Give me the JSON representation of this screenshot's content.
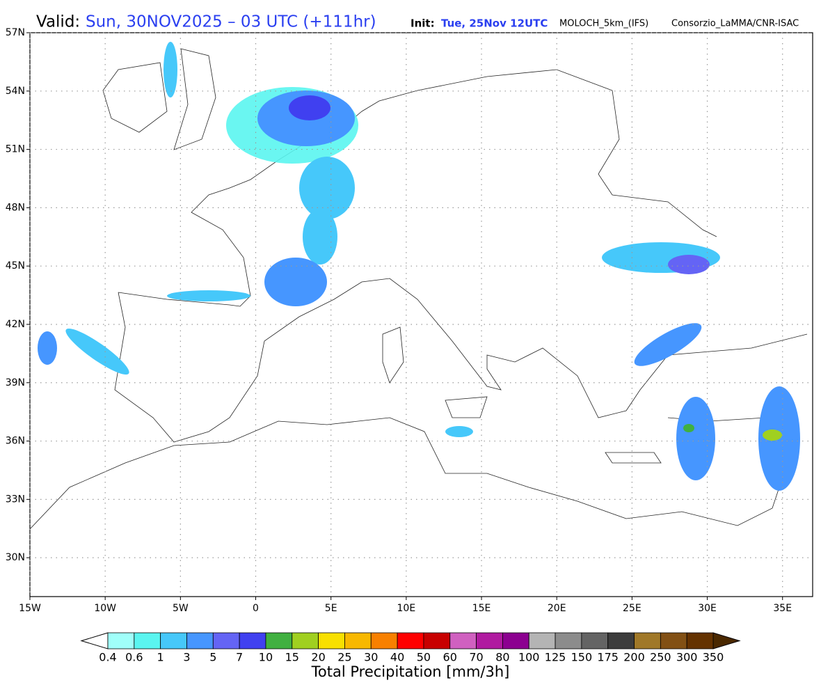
{
  "header": {
    "valid_label": "Valid:",
    "valid_time": "Sun, 30NOV2025 – 03 UTC (+111hr)",
    "init_label": "Init:",
    "init_time": "Tue, 25Nov 12UTC",
    "model": "MOLOCH_5km_(IFS)",
    "credit": "Consorzio_LaMMA/CNR-ISAC"
  },
  "map": {
    "lonlim": [
      -15,
      37
    ],
    "latlim": [
      28,
      57
    ],
    "grid": true,
    "lon_ticks": [
      {
        "value": -15,
        "label": "15W"
      },
      {
        "value": -10,
        "label": "10W"
      },
      {
        "value": -5,
        "label": "5W"
      },
      {
        "value": 0,
        "label": "0"
      },
      {
        "value": 5,
        "label": "5E"
      },
      {
        "value": 10,
        "label": "10E"
      },
      {
        "value": 15,
        "label": "15E"
      },
      {
        "value": 20,
        "label": "20E"
      },
      {
        "value": 25,
        "label": "25E"
      },
      {
        "value": 30,
        "label": "30E"
      },
      {
        "value": 35,
        "label": "35E"
      }
    ],
    "lat_ticks": [
      {
        "value": 30,
        "label": "30N"
      },
      {
        "value": 33,
        "label": "33N"
      },
      {
        "value": 36,
        "label": "36N"
      },
      {
        "value": 39,
        "label": "39N"
      },
      {
        "value": 42,
        "label": "42N"
      },
      {
        "value": 45,
        "label": "45N"
      },
      {
        "value": 48,
        "label": "48N"
      },
      {
        "value": 51,
        "label": "51N"
      },
      {
        "value": 54,
        "label": "54N"
      },
      {
        "value": 57,
        "label": "57N"
      }
    ]
  },
  "colorbar": {
    "title": "Total Precipitation [mm/3h]",
    "levels": [
      0.4,
      0.6,
      1,
      3,
      5,
      7,
      10,
      15,
      20,
      25,
      30,
      40,
      50,
      60,
      70,
      80,
      100,
      125,
      150,
      175,
      200,
      250,
      300,
      350
    ],
    "under_color": "#ffffff",
    "over_color": "#4a2800",
    "colors": [
      "#a0fffa",
      "#5af5f0",
      "#46c8fa",
      "#4696ff",
      "#6464f5",
      "#4040f0",
      "#40b040",
      "#a0d020",
      "#f8e000",
      "#f8b800",
      "#f88000",
      "#ff0000",
      "#c80000",
      "#d060c0",
      "#b01aa0",
      "#8c0090",
      "#b4b4b4",
      "#8c8c8c",
      "#646464",
      "#3c3c3c",
      "#a07828",
      "#825014",
      "#643200"
    ]
  }
}
